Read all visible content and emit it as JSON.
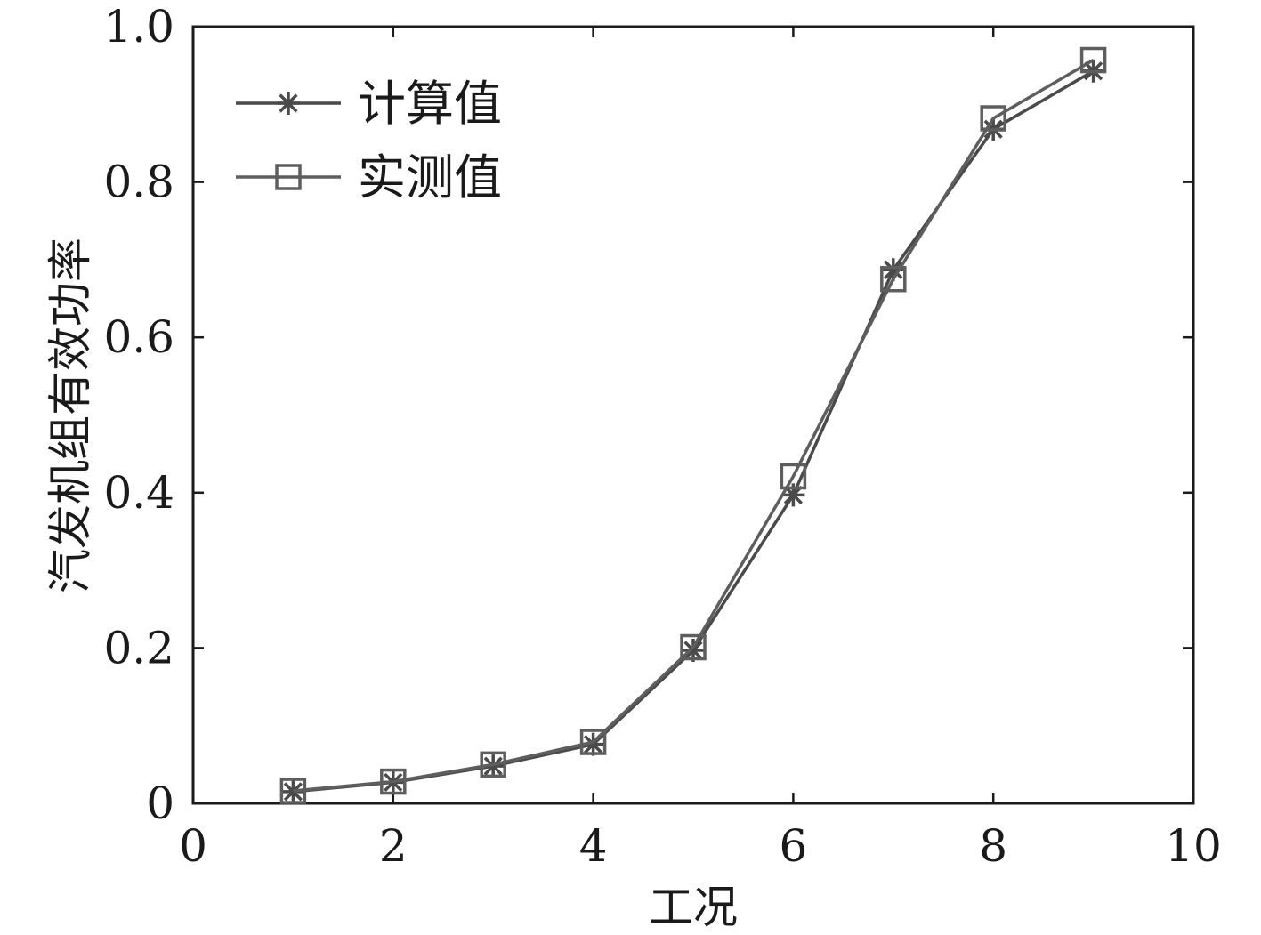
{
  "chart_data": {
    "type": "line",
    "title": "",
    "xlabel": "工况",
    "ylabel": "汽发机组有效功率",
    "xlim": [
      0,
      10
    ],
    "ylim": [
      0,
      1.0
    ],
    "xticks": [
      0,
      2,
      4,
      6,
      8,
      10
    ],
    "xtick_labels": [
      "0",
      "2",
      "4",
      "6",
      "8",
      "10"
    ],
    "yticks": [
      0,
      0.2,
      0.4,
      0.6,
      0.8,
      1.0
    ],
    "ytick_labels": [
      "0",
      "0.2",
      "0.4",
      "0.6",
      "0.8",
      "1.0"
    ],
    "grid": false,
    "legend_position": "top-left",
    "series": [
      {
        "name": "计算值",
        "marker": "asterisk",
        "color": "#4a4a4a",
        "x": [
          1,
          2,
          3,
          4,
          5,
          6,
          7,
          8,
          9
        ],
        "y": [
          0.015,
          0.027,
          0.048,
          0.076,
          0.197,
          0.397,
          0.687,
          0.868,
          0.943
        ]
      },
      {
        "name": "实测值",
        "marker": "square",
        "color": "#5e5e5e",
        "x": [
          1,
          2,
          3,
          4,
          5,
          6,
          7,
          8,
          9
        ],
        "y": [
          0.016,
          0.028,
          0.05,
          0.079,
          0.201,
          0.421,
          0.675,
          0.882,
          0.957
        ]
      }
    ]
  }
}
